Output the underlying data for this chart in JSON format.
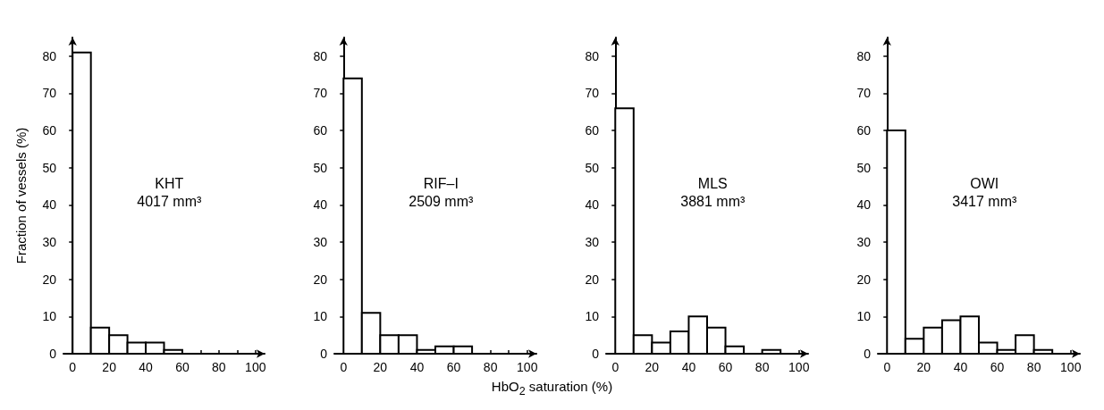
{
  "chart_data": [
    {
      "type": "histogram",
      "title": "KHT",
      "subtitle": "4017 mm³",
      "ylabel": "Fraction of vessels (%)",
      "bins": [
        0,
        10,
        20,
        30,
        40,
        50,
        60,
        70,
        80,
        90,
        100
      ],
      "values": [
        81,
        7,
        5,
        3,
        3,
        1,
        0,
        0,
        0,
        0
      ],
      "color": "#ffffff",
      "xlim": [
        -5,
        105
      ],
      "ylim": [
        0,
        85
      ],
      "xticks": [
        0,
        {
          "value": 10,
          "label": null
        },
        20,
        {
          "value": 30,
          "label": null
        },
        40,
        {
          "value": 50,
          "label": null
        },
        60,
        {
          "value": 70,
          "label": null
        },
        80,
        {
          "value": 90,
          "label": null
        },
        100
      ],
      "yticks": [
        0,
        10,
        20,
        30,
        40,
        50,
        60,
        70,
        80
      ],
      "grid": false
    },
    {
      "type": "histogram",
      "title": "RIF–I",
      "subtitle": "2509 mm³",
      "xlabel": "HbO$_{2}$ saturation (%)",
      "bins": [
        0,
        10,
        20,
        30,
        40,
        50,
        60,
        70,
        80,
        90,
        100
      ],
      "values": [
        74,
        11,
        5,
        5,
        1,
        2,
        2,
        0,
        0,
        0
      ],
      "color": "#ffffff",
      "xlim": [
        -5,
        105
      ],
      "ylim": [
        0,
        85
      ],
      "xticks": [
        0,
        {
          "value": 10,
          "label": null
        },
        20,
        {
          "value": 30,
          "label": null
        },
        40,
        {
          "value": 50,
          "label": null
        },
        60,
        {
          "value": 70,
          "label": null
        },
        80,
        {
          "value": 90,
          "label": null
        },
        100
      ],
      "yticks": [
        0,
        10,
        20,
        30,
        40,
        50,
        60,
        70,
        80
      ],
      "grid": false
    },
    {
      "type": "histogram",
      "title": "MLS",
      "subtitle": "3881 mm³",
      "bins": [
        0,
        10,
        20,
        30,
        40,
        50,
        60,
        70,
        80,
        90,
        100
      ],
      "values": [
        66,
        5,
        3,
        6,
        10,
        7,
        2,
        0,
        1,
        0
      ],
      "color": "#ffffff",
      "xlim": [
        -5,
        105
      ],
      "ylim": [
        0,
        85
      ],
      "xticks": [
        0,
        {
          "value": 10,
          "label": null
        },
        20,
        {
          "value": 30,
          "label": null
        },
        40,
        {
          "value": 50,
          "label": null
        },
        60,
        {
          "value": 70,
          "label": null
        },
        80,
        {
          "value": 90,
          "label": null
        },
        100
      ],
      "yticks": [
        0,
        10,
        20,
        30,
        40,
        50,
        60,
        70,
        80
      ],
      "grid": false
    },
    {
      "type": "histogram",
      "title": "OWI",
      "subtitle": "3417 mm³",
      "bins": [
        0,
        10,
        20,
        30,
        40,
        50,
        60,
        70,
        80,
        90,
        100
      ],
      "values": [
        60,
        4,
        7,
        9,
        10,
        3,
        1,
        5,
        1,
        0
      ],
      "color": "#ffffff",
      "xlim": [
        -5,
        105
      ],
      "ylim": [
        0,
        85
      ],
      "xticks": [
        0,
        {
          "value": 10,
          "label": null
        },
        20,
        {
          "value": 30,
          "label": null
        },
        40,
        {
          "value": 50,
          "label": null
        },
        60,
        {
          "value": 70,
          "label": null
        },
        80,
        {
          "value": 90,
          "label": null
        },
        100
      ],
      "yticks": [
        0,
        10,
        20,
        30,
        40,
        50,
        60,
        70,
        80
      ],
      "grid": false
    }
  ]
}
